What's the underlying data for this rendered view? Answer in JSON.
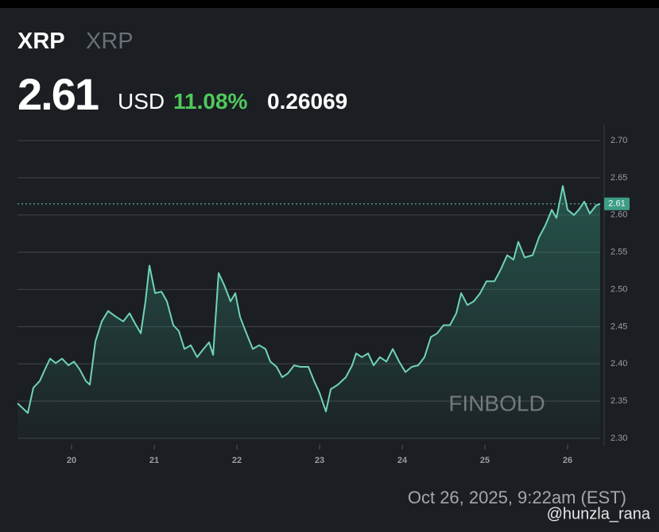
{
  "header": {
    "symbol": "XRP",
    "name": "XRP",
    "price": "2.61",
    "currency": "USD",
    "change_pct": "11.08%",
    "change": "0.26069"
  },
  "chart_data": {
    "type": "line",
    "x": [
      19.346,
      19.471,
      19.538,
      19.615,
      19.692,
      19.74,
      19.808,
      19.885,
      19.962,
      20.029,
      20.096,
      20.173,
      20.221,
      20.288,
      20.365,
      20.442,
      20.529,
      20.625,
      20.702,
      20.769,
      20.837,
      20.894,
      20.942,
      21.01,
      21.087,
      21.154,
      21.231,
      21.298,
      21.365,
      21.442,
      21.519,
      21.596,
      21.663,
      21.712,
      21.779,
      21.846,
      21.923,
      21.981,
      22.038,
      22.115,
      22.192,
      22.269,
      22.346,
      22.404,
      22.481,
      22.548,
      22.615,
      22.692,
      22.769,
      22.865,
      22.933,
      23.0,
      23.077,
      23.135,
      23.221,
      23.317,
      23.394,
      23.442,
      23.51,
      23.587,
      23.654,
      23.731,
      23.808,
      23.885,
      23.962,
      24.038,
      24.115,
      24.192,
      24.269,
      24.346,
      24.423,
      24.5,
      24.577,
      24.654,
      24.712,
      24.788,
      24.865,
      24.942,
      25.019,
      25.115,
      25.192,
      25.269,
      25.346,
      25.404,
      25.481,
      25.577,
      25.654,
      25.731,
      25.808,
      25.865,
      25.942,
      26.0,
      26.077,
      26.135,
      26.202,
      26.269,
      26.346,
      26.394
    ],
    "series": [
      {
        "name": "XRP",
        "color": "#6fd3b8",
        "values": [
          2.347,
          2.334,
          2.368,
          2.377,
          2.396,
          2.407,
          2.401,
          2.407,
          2.398,
          2.403,
          2.393,
          2.377,
          2.372,
          2.43,
          2.457,
          2.471,
          2.464,
          2.457,
          2.468,
          2.454,
          2.441,
          2.484,
          2.532,
          2.495,
          2.497,
          2.484,
          2.452,
          2.444,
          2.42,
          2.425,
          2.409,
          2.42,
          2.429,
          2.412,
          2.522,
          2.506,
          2.484,
          2.495,
          2.463,
          2.441,
          2.42,
          2.425,
          2.42,
          2.403,
          2.396,
          2.382,
          2.387,
          2.398,
          2.396,
          2.396,
          2.377,
          2.361,
          2.336,
          2.366,
          2.372,
          2.382,
          2.398,
          2.414,
          2.409,
          2.414,
          2.398,
          2.409,
          2.403,
          2.42,
          2.403,
          2.389,
          2.396,
          2.398,
          2.409,
          2.436,
          2.441,
          2.452,
          2.452,
          2.468,
          2.495,
          2.479,
          2.484,
          2.495,
          2.511,
          2.511,
          2.527,
          2.546,
          2.54,
          2.564,
          2.543,
          2.546,
          2.57,
          2.586,
          2.607,
          2.596,
          2.639,
          2.607,
          2.6,
          2.607,
          2.618,
          2.602,
          2.613,
          2.615
        ]
      }
    ],
    "xlim": [
      19.346,
      26.394
    ],
    "xticks": [
      20,
      21,
      22,
      23,
      24,
      25,
      26
    ],
    "ylim": [
      2.3,
      2.7
    ],
    "yticks": [
      {
        "value": 2.3,
        "label": "2.30"
      },
      2.35,
      {
        "value": 2.4,
        "label": "2.40"
      },
      2.45,
      {
        "value": 2.5,
        "label": "2.50"
      },
      2.55,
      {
        "value": 2.6,
        "label": "2.60"
      },
      2.65,
      {
        "value": 2.7,
        "label": "2.70"
      }
    ],
    "grid": true,
    "last_label": "2.61",
    "watermark": "FINBOLD",
    "timestamp": "Oct 26, 2025, 9:22am (EST)",
    "credit": "@hunzla_rana"
  }
}
